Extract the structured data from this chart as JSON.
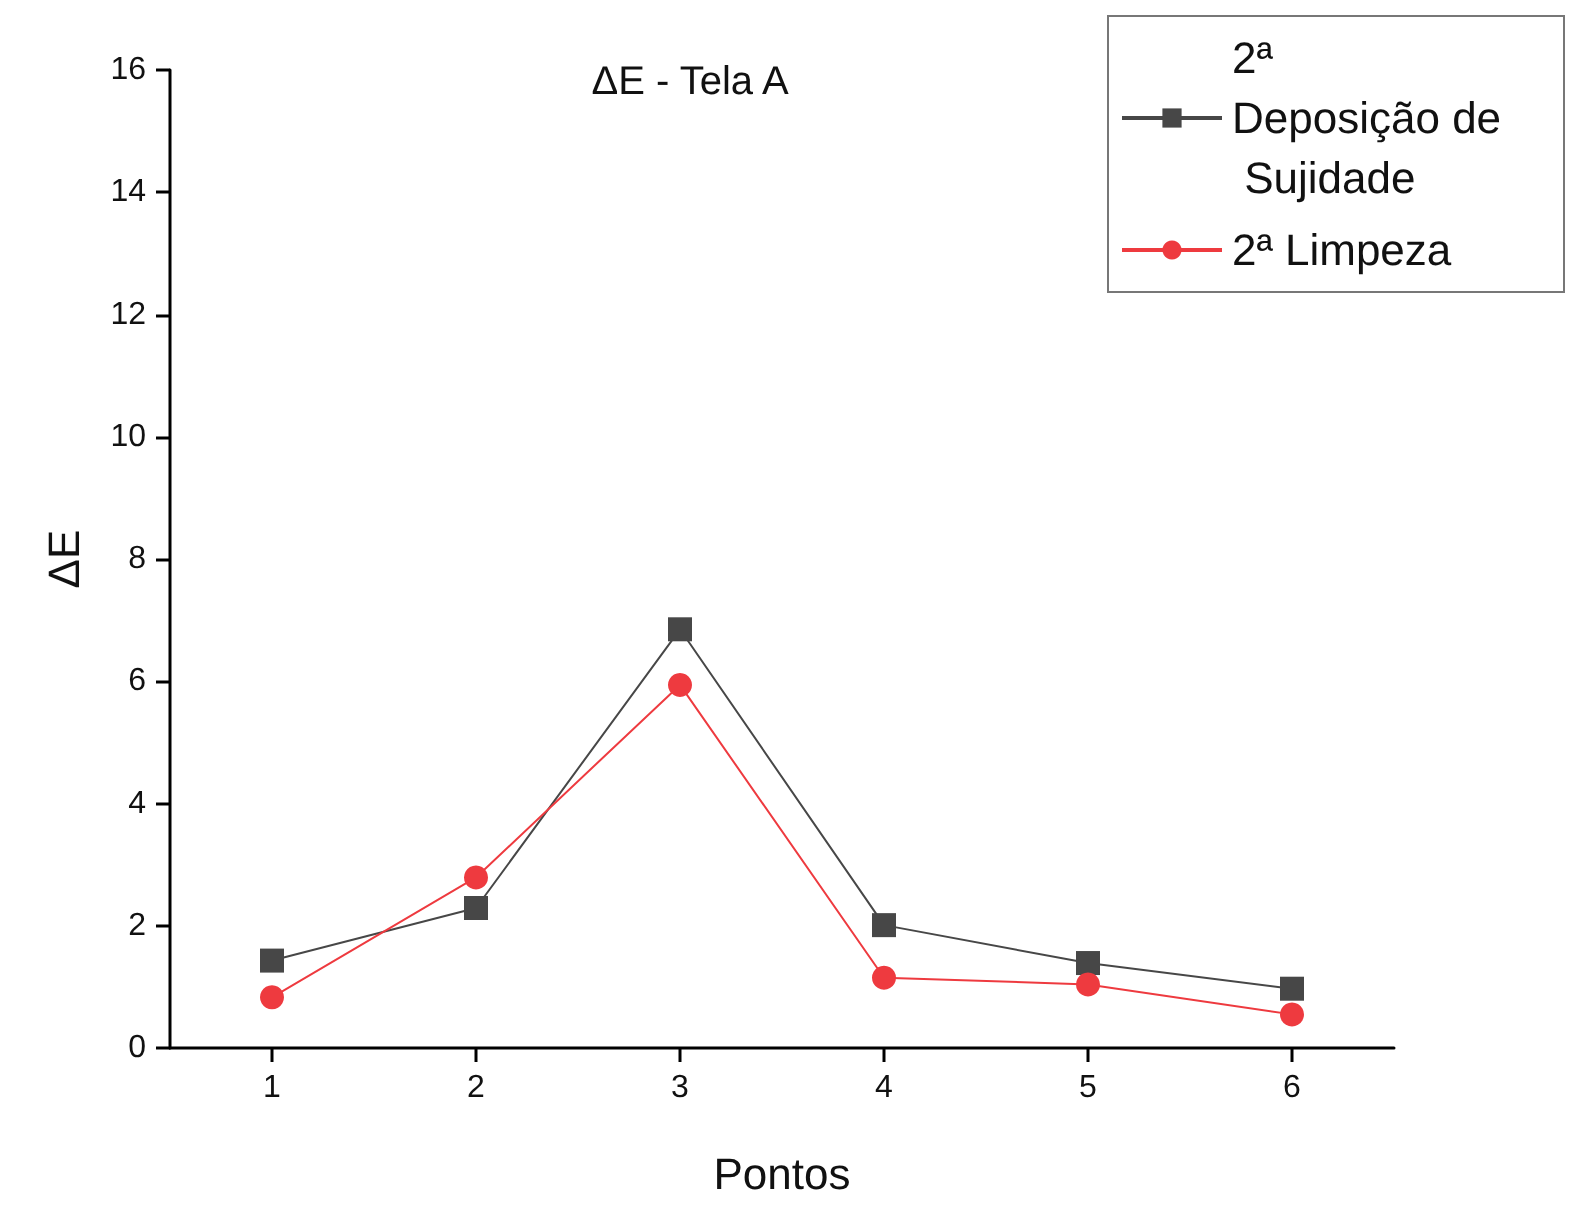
{
  "chart_data": {
    "type": "line",
    "title": "ΔE - Tela A",
    "xlabel": "Pontos",
    "ylabel": "ΔE",
    "x": [
      1,
      2,
      3,
      4,
      5,
      6
    ],
    "series": [
      {
        "name": "2ª Deposição de Sujidade",
        "color": "#474747",
        "marker": "square",
        "values": [
          1.43,
          2.29,
          6.85,
          2.01,
          1.39,
          0.97
        ]
      },
      {
        "name": "2ª Limpeza",
        "color": "#ee3a3f",
        "marker": "circle",
        "values": [
          0.83,
          2.79,
          5.94,
          1.15,
          1.04,
          0.55
        ]
      }
    ],
    "xlim": [
      0.5,
      6.5
    ],
    "xticks": [
      1,
      2,
      3,
      4,
      5,
      6
    ],
    "ylim": [
      0,
      16
    ],
    "yticks": [
      0,
      2,
      4,
      6,
      8,
      10,
      12,
      14,
      16
    ],
    "grid": false,
    "legend": "top right",
    "line_style": "solid"
  }
}
